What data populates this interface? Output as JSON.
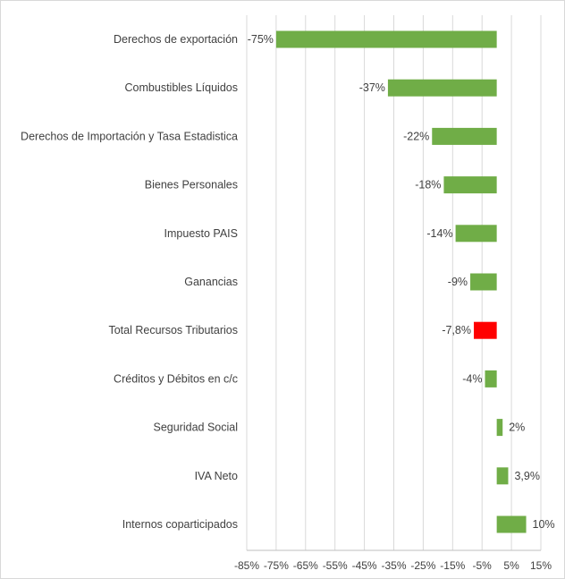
{
  "chart_data": {
    "type": "bar",
    "orientation": "horizontal",
    "title": "",
    "xlabel": "",
    "ylabel": "",
    "xlim": [
      -85,
      15
    ],
    "grid": true,
    "legend": "none",
    "categories": [
      "Derechos de exportación",
      "Combustibles Líquidos",
      "Derechos de Importación y Tasa Estadistica",
      "Bienes Personales",
      "Impuesto PAIS",
      "Ganancias",
      "Total Recursos Tributarios",
      "Créditos y Débitos en c/c",
      "Seguridad Social",
      "IVA Neto",
      "Internos coparticipados"
    ],
    "values": [
      -75,
      -37,
      -22,
      -18,
      -14,
      -9,
      -7.8,
      -4,
      2,
      3.9,
      10
    ],
    "value_labels": [
      "-75%",
      "-37%",
      "-22%",
      "-18%",
      "-14%",
      "-9%",
      "-7,8%",
      "-4%",
      "2%",
      "3,9%",
      "10%"
    ],
    "highlight_index": 6,
    "x_ticks": [
      "-85%",
      "-75%",
      "-65%",
      "-55%",
      "-45%",
      "-35%",
      "-25%",
      "-15%",
      "-5%",
      "5%",
      "15%"
    ],
    "colors": {
      "bar": "#70ad47",
      "highlight": "#ff0000",
      "grid": "#d9d9d9",
      "axis": "#bfbfbf",
      "text": "#404040"
    }
  }
}
